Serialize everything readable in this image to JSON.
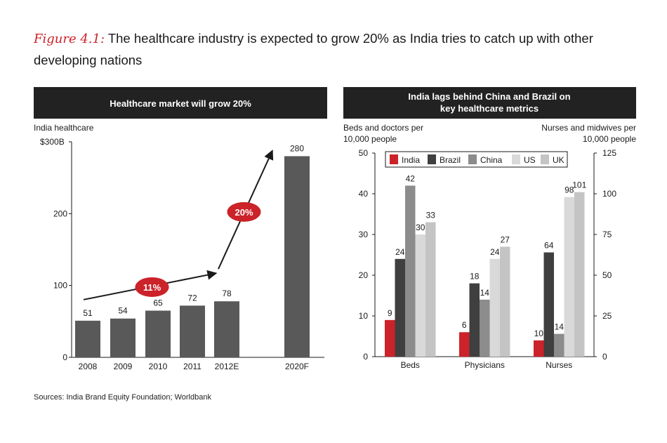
{
  "figure": {
    "label": "Figure 4.1:",
    "title": "The healthcare industry is expected to grow 20% as India tries to catch up with other developing nations",
    "source": "Sources: India Brand Equity Foundation; Worldbank"
  },
  "chart_data": [
    {
      "type": "bar",
      "title": "Healthcare market will grow 20%",
      "ylabel": "India healthcare",
      "xlabel": "",
      "categories": [
        "2008",
        "2009",
        "2010",
        "2011",
        "2012E",
        "2020F"
      ],
      "values": [
        51,
        54,
        65,
        72,
        78,
        280
      ],
      "value_labels": [
        "51",
        "54",
        "65",
        "72",
        "78",
        "280"
      ],
      "ylim": [
        0,
        300
      ],
      "yticks": [
        0,
        100,
        200,
        300
      ],
      "ytick_labels": [
        "0",
        "100",
        "200",
        "$300B"
      ],
      "annotations": [
        {
          "label": "11%",
          "note": "growth arrow 2008–2012E"
        },
        {
          "label": "20%",
          "note": "growth arrow 2012E–2020F"
        }
      ],
      "colors": {
        "bar": "#595959",
        "accent": "#cc2229"
      }
    },
    {
      "type": "bar",
      "title": "India lags behind China and Brazil on key healthcare metrics",
      "ylabel_left": "Beds and doctors per 10,000 people",
      "ylabel_right": "Nurses and midwives per 10,000 people",
      "categories": [
        "Beds",
        "Physicians",
        "Nurses"
      ],
      "series": [
        {
          "name": "India",
          "values": [
            9,
            6,
            10
          ],
          "color": "#cc2229"
        },
        {
          "name": "Brazil",
          "values": [
            24,
            18,
            64
          ],
          "color": "#3f3f3f"
        },
        {
          "name": "China",
          "values": [
            42,
            14,
            14
          ],
          "color": "#8c8c8c"
        },
        {
          "name": "US",
          "values": [
            30,
            24,
            98
          ],
          "color": "#d9d9d9"
        },
        {
          "name": "UK",
          "values": [
            33,
            27,
            101
          ],
          "color": "#c4c4c4"
        }
      ],
      "axis_note": "Nurses group plotted on the right axis",
      "ylim_left": [
        0,
        50
      ],
      "ylim_right": [
        0,
        125
      ],
      "yticks_left": [
        0,
        10,
        20,
        30,
        40,
        50
      ],
      "yticks_right": [
        0,
        25,
        50,
        75,
        100,
        125
      ],
      "legend": "top-center"
    }
  ]
}
